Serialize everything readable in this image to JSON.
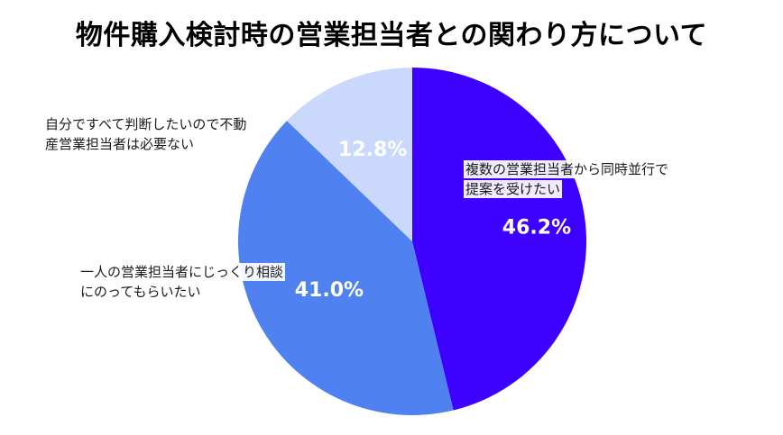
{
  "chart_data": {
    "type": "pie",
    "title": "物件購入検討時の営業担当者との関わり方について",
    "slices": [
      {
        "label": "複数の営業担当者から同時並行で提案を受けたい",
        "label_lines": [
          "複数の営業担当者から同時並行で",
          "提案を受けたい"
        ],
        "value": 46.2,
        "value_label": "46.2%",
        "color": "#3d00ff"
      },
      {
        "label": "一人の営業担当者にじっくり相談にのってもらいたい",
        "label_lines": [
          "一人の営業担当者にじっくり相談",
          "にのってもらいたい"
        ],
        "value": 41.0,
        "value_label": "41.0%",
        "color": "#4f82f0"
      },
      {
        "label": "自分ですべて判断したいので不動産営業担当者は必要ない",
        "label_lines": [
          "自分ですべて判断したいので不動",
          "産営業担当者は必要ない"
        ],
        "value": 12.8,
        "value_label": "12.8%",
        "color": "#c9d8fb"
      }
    ],
    "start_angle": "top",
    "direction": "clockwise",
    "legend": "none"
  }
}
